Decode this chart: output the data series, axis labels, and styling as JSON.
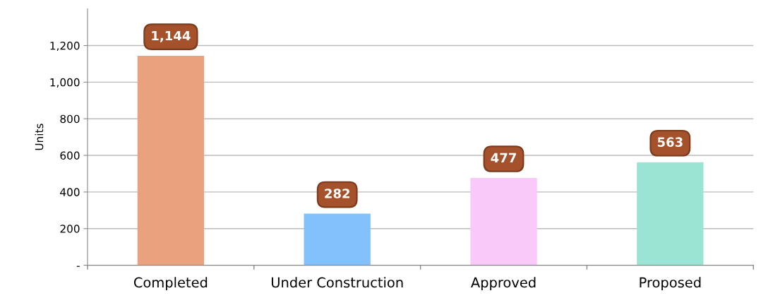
{
  "chart_data": {
    "type": "bar",
    "ylabel": "Units",
    "categories": [
      "Completed",
      "Under Construction",
      "Approved",
      "Proposed"
    ],
    "values": [
      1144,
      282,
      477,
      563
    ],
    "colors": [
      "#e9a17e",
      "#82c1fb",
      "#f9c9f9",
      "#9be3d3"
    ],
    "value_labels": [
      "1,144",
      "282",
      "477",
      "563"
    ],
    "ylim": [
      0,
      1400
    ],
    "yticks": [
      {
        "value": 0,
        "label": "-"
      },
      {
        "value": 200,
        "label": "200"
      },
      {
        "value": 400,
        "label": "400"
      },
      {
        "value": 600,
        "label": "600"
      },
      {
        "value": 800,
        "label": "800"
      },
      {
        "value": 1000,
        "label": "1,000"
      },
      {
        "value": 1200,
        "label": "1,200"
      }
    ],
    "grid": "y"
  }
}
